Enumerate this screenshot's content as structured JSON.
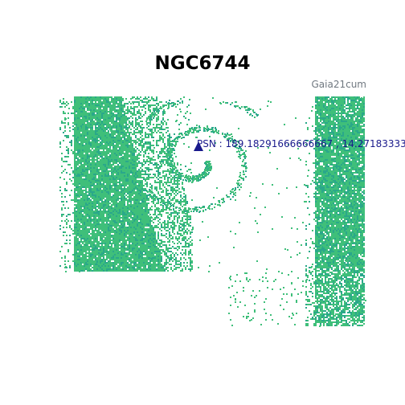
{
  "title": "NGC6744",
  "source_label": "Gaia21cum",
  "target": {
    "label_prefix": "PSN :",
    "ra": "189.18291666666667",
    "separator": ",",
    "dec": "14.27183333"
  },
  "colors": {
    "field_pixel": "#3fbf7a",
    "field_pixel_dark": "#2aa88a",
    "marker": "#1a1a8c",
    "label": "#1a1a8c"
  },
  "icons": {
    "marker": "triangle-up-icon"
  }
}
